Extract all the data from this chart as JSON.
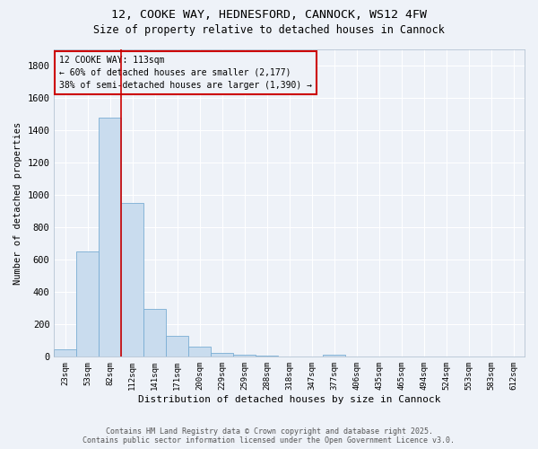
{
  "title1": "12, COOKE WAY, HEDNESFORD, CANNOCK, WS12 4FW",
  "title2": "Size of property relative to detached houses in Cannock",
  "xlabel": "Distribution of detached houses by size in Cannock",
  "ylabel": "Number of detached properties",
  "categories": [
    "23sqm",
    "53sqm",
    "82sqm",
    "112sqm",
    "141sqm",
    "171sqm",
    "200sqm",
    "229sqm",
    "259sqm",
    "288sqm",
    "318sqm",
    "347sqm",
    "377sqm",
    "406sqm",
    "435sqm",
    "465sqm",
    "494sqm",
    "524sqm",
    "553sqm",
    "583sqm",
    "612sqm"
  ],
  "values": [
    47,
    650,
    1480,
    950,
    295,
    132,
    63,
    22,
    12,
    5,
    2,
    0,
    12,
    0,
    0,
    0,
    0,
    0,
    0,
    0,
    0
  ],
  "bar_color": "#c9dcee",
  "bar_edge_color": "#7aadd4",
  "vline_x": 2.5,
  "vline_color": "#cc0000",
  "annotation_text": "12 COOKE WAY: 113sqm\n← 60% of detached houses are smaller (2,177)\n38% of semi-detached houses are larger (1,390) →",
  "annotation_box_color": "#cc0000",
  "ylim": [
    0,
    1900
  ],
  "yticks": [
    0,
    200,
    400,
    600,
    800,
    1000,
    1200,
    1400,
    1600,
    1800
  ],
  "footer1": "Contains HM Land Registry data © Crown copyright and database right 2025.",
  "footer2": "Contains public sector information licensed under the Open Government Licence v3.0.",
  "bg_color": "#eef2f8",
  "grid_color": "#ffffff"
}
